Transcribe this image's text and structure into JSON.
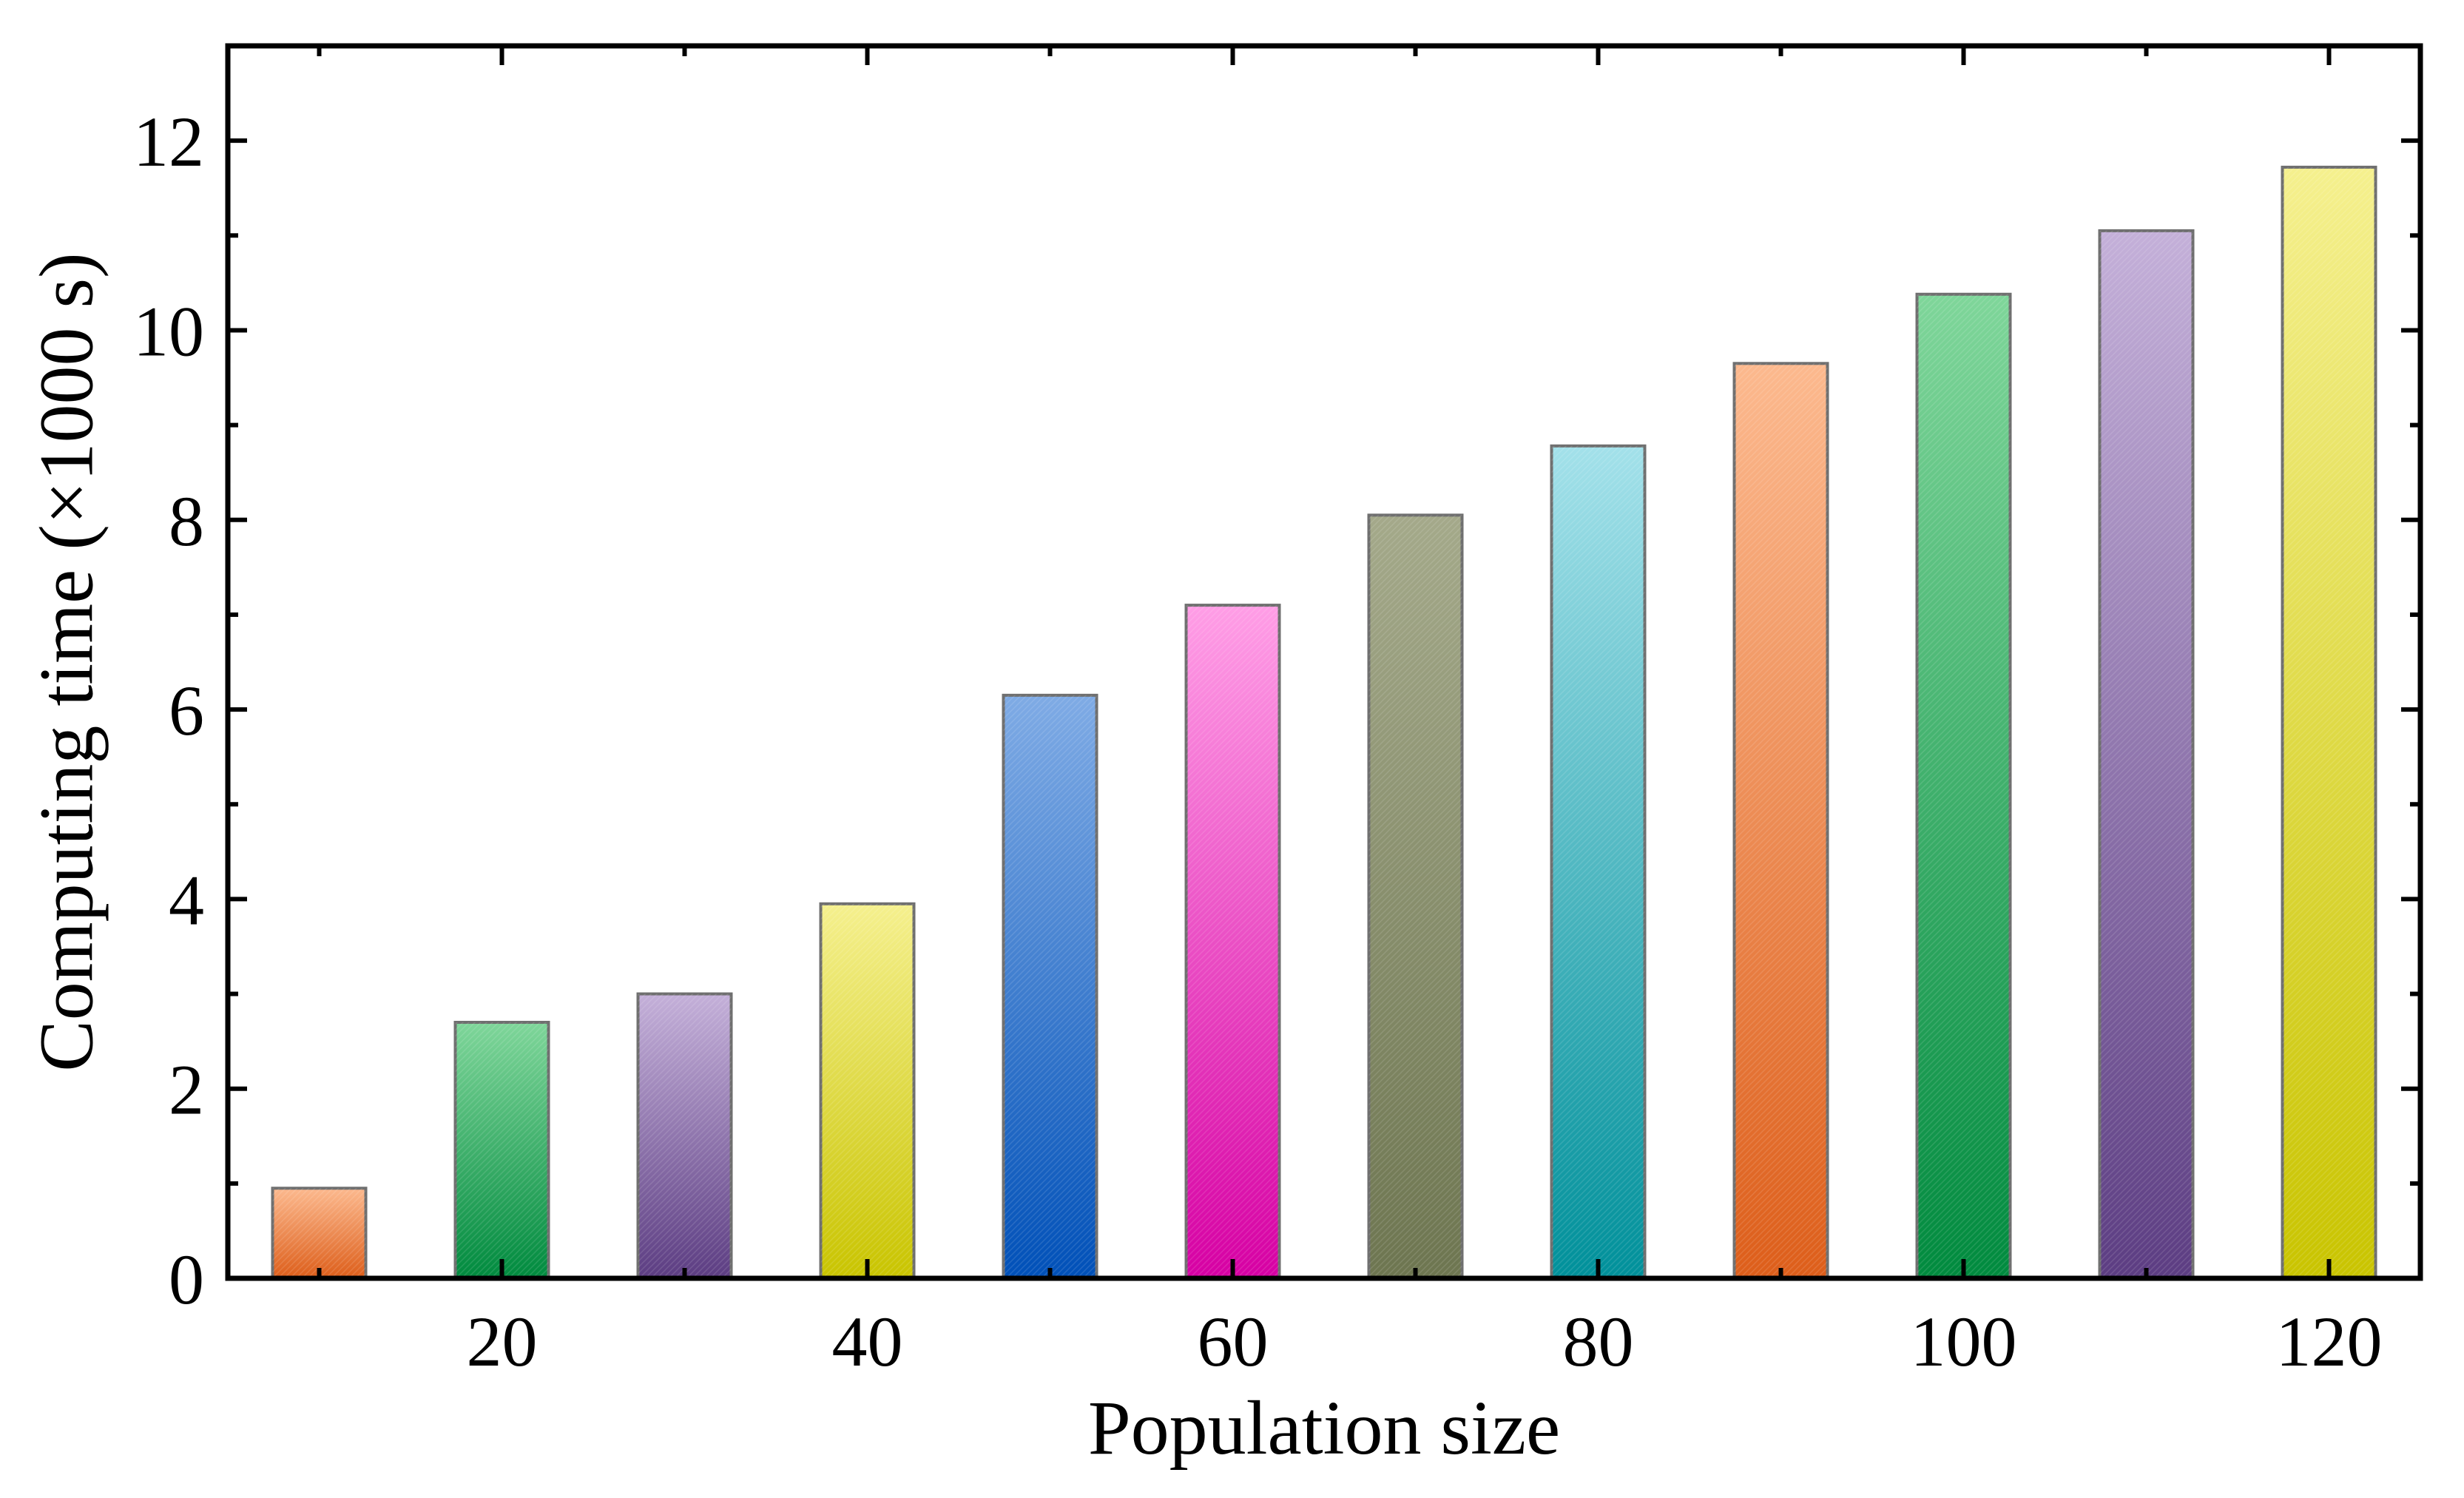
{
  "chart_data": {
    "type": "bar",
    "title": "",
    "xlabel": "Population size",
    "ylabel": "Computing time (×1000 s)",
    "x": [
      10,
      20,
      30,
      40,
      50,
      60,
      70,
      80,
      90,
      100,
      110,
      120
    ],
    "values": [
      0.95,
      2.7,
      3.0,
      3.95,
      6.15,
      7.1,
      8.05,
      8.78,
      9.65,
      10.38,
      11.05,
      11.72
    ],
    "xlim": [
      5,
      125
    ],
    "ylim": [
      0,
      13
    ],
    "xticks": [
      20,
      40,
      60,
      80,
      100,
      120
    ],
    "xtick_labels": [
      "20",
      "40",
      "60",
      "80",
      "100",
      "120"
    ],
    "xminor_ticks": [
      10,
      30,
      50,
      70,
      90,
      110
    ],
    "yticks": [
      0,
      2,
      4,
      6,
      8,
      10,
      12
    ],
    "ytick_labels": [
      "0",
      "2",
      "4",
      "6",
      "8",
      "10",
      "12"
    ],
    "yminor_ticks": [
      1,
      3,
      5,
      7,
      9,
      11
    ],
    "bar_colors": [
      {
        "top": "#fcb98e",
        "bottom": "#dd5e1a"
      },
      {
        "top": "#7fd69a",
        "bottom": "#008a3e"
      },
      {
        "top": "#c4b0d9",
        "bottom": "#5c3d82"
      },
      {
        "top": "#f5f08e",
        "bottom": "#c9c400"
      },
      {
        "top": "#7fabe5",
        "bottom": "#0050b8"
      },
      {
        "top": "#ff9ee6",
        "bottom": "#d600a3"
      },
      {
        "top": "#a4a98a",
        "bottom": "#6d7550"
      },
      {
        "top": "#a3e1ea",
        "bottom": "#00909a"
      },
      {
        "top": "#fcb98e",
        "bottom": "#dd5e1a"
      },
      {
        "top": "#7fd69a",
        "bottom": "#008a3e"
      },
      {
        "top": "#c4b0d9",
        "bottom": "#5c3d82"
      },
      {
        "top": "#f5f08e",
        "bottom": "#c9c400"
      }
    ],
    "grid": false,
    "legend": "none"
  }
}
